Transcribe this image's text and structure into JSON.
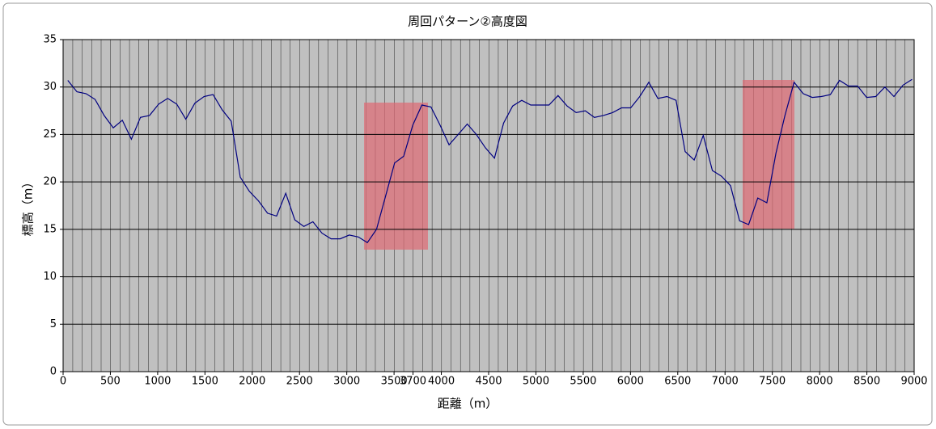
{
  "chart_data": {
    "type": "line",
    "title": "周回パターン②高度図",
    "x_label": "距離（m）",
    "y_label": "標高（m）",
    "x": [
      50,
      146,
      242,
      338,
      434,
      530,
      626,
      722,
      818,
      914,
      1010,
      1106,
      1202,
      1298,
      1394,
      1490,
      1586,
      1682,
      1778,
      1874,
      1970,
      2066,
      2162,
      2258,
      2354,
      2450,
      2546,
      2642,
      2738,
      2834,
      2930,
      3026,
      3122,
      3218,
      3314,
      3410,
      3506,
      3602,
      3698,
      3794,
      3890,
      3986,
      4082,
      4178,
      4274,
      4370,
      4466,
      4562,
      4658,
      4754,
      4850,
      4946,
      5042,
      5138,
      5234,
      5330,
      5426,
      5522,
      5618,
      5714,
      5810,
      5906,
      6002,
      6098,
      6194,
      6290,
      6386,
      6482,
      6578,
      6674,
      6770,
      6866,
      6962,
      7058,
      7154,
      7250,
      7346,
      7442,
      7538,
      7634,
      7730,
      7826,
      7922,
      8018,
      8114,
      8210,
      8306,
      8402,
      8498,
      8594,
      8690,
      8786,
      8882,
      8978
    ],
    "series": [
      {
        "color": "#000080",
        "values": [
          30.7,
          29.5,
          29.3,
          28.7,
          27,
          25.7,
          26.5,
          24.5,
          26.8,
          27,
          28.2,
          28.8,
          28.2,
          26.6,
          28.3,
          29,
          29.2,
          27.6,
          26.4,
          20.5,
          19,
          18,
          16.7,
          16.4,
          18.8,
          16,
          15.3,
          15.8,
          14.6,
          14,
          14,
          14.4,
          14.2,
          13.6,
          15,
          18.5,
          22,
          22.7,
          26,
          28.1,
          27.9,
          26,
          23.9,
          25,
          26.1,
          25,
          23.6,
          22.5,
          26.2,
          28,
          28.6,
          28.1,
          28.1,
          28.1,
          29.1,
          28,
          27.3,
          27.5,
          26.8,
          27,
          27.3,
          27.8,
          27.8,
          29,
          30.5,
          28.8,
          29,
          28.6,
          23.2,
          22.3,
          24.9,
          21.2,
          20.6,
          19.6,
          15.9,
          15.5,
          18.3,
          17.8,
          23,
          27,
          30.5,
          29.3,
          28.9,
          29,
          29.2,
          30.7,
          30.1,
          30.1,
          28.9,
          29,
          30,
          29,
          30.2,
          30.8
        ]
      }
    ],
    "xlim": [
      0,
      9000
    ],
    "xticks": [
      0,
      500,
      1000,
      1500,
      2000,
      2500,
      3000,
      3500,
      3700,
      4000,
      4500,
      5000,
      5500,
      6000,
      6500,
      7000,
      7500,
      8000,
      8500,
      9000
    ],
    "ylim": [
      0,
      35
    ],
    "yticks": [
      0,
      5,
      10,
      15,
      20,
      25,
      30,
      35
    ],
    "grid": true
  }
}
